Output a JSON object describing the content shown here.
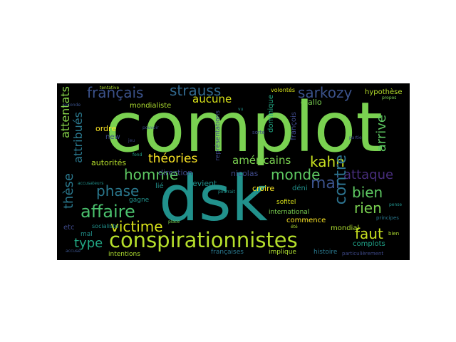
{
  "wordcloud": {
    "background": "#000000",
    "words": [
      {
        "text": "complot",
        "color": "#7ad151"
      },
      {
        "text": "dsk",
        "color": "#21918c"
      },
      {
        "text": "conspirationnistes",
        "color": "#b5de2b"
      },
      {
        "text": "théories",
        "color": "#fde725"
      },
      {
        "text": "homme",
        "color": "#5ec962"
      },
      {
        "text": "kahn",
        "color": "#c8e020"
      },
      {
        "text": "monde",
        "color": "#5ec962"
      },
      {
        "text": "affaire",
        "color": "#4ac16d"
      },
      {
        "text": "victime",
        "color": "#d8e219"
      },
      {
        "text": "phase",
        "color": "#2a788e"
      },
      {
        "text": "type",
        "color": "#22a884"
      },
      {
        "text": "français",
        "color": "#3b528b"
      },
      {
        "text": "strauss",
        "color": "#31688e"
      },
      {
        "text": "sarkozy",
        "color": "#3b528b"
      },
      {
        "text": "aucune",
        "color": "#d8e219"
      },
      {
        "text": "américains",
        "color": "#7ad151"
      },
      {
        "text": "attaque",
        "color": "#472d7b"
      },
      {
        "text": "bien",
        "color": "#5ec962"
      },
      {
        "text": "faut",
        "color": "#c8e020"
      },
      {
        "text": "rien",
        "color": "#7ad151"
      },
      {
        "text": "mai",
        "color": "#3b528b"
      },
      {
        "text": "contre",
        "color": "#2c728e"
      },
      {
        "text": "arrive",
        "color": "#5ec962"
      },
      {
        "text": "thèse",
        "color": "#2a788e"
      },
      {
        "text": "attentats",
        "color": "#86d549"
      },
      {
        "text": "attribués",
        "color": "#2a788e"
      },
      {
        "text": "autorités",
        "color": "#b5de2b"
      },
      {
        "text": "ordre",
        "color": "#fde725"
      },
      {
        "text": "direction",
        "color": "#3e4989"
      },
      {
        "text": "nicolas",
        "color": "#3e4989"
      },
      {
        "text": "devient",
        "color": "#21918c"
      },
      {
        "text": "croire",
        "color": "#fde725"
      },
      {
        "text": "déni",
        "color": "#21918c"
      },
      {
        "text": "mondial",
        "color": "#addc30"
      },
      {
        "text": "international",
        "color": "#7ad151"
      },
      {
        "text": "commence",
        "color": "#fde725"
      },
      {
        "text": "complots",
        "color": "#1fa187"
      },
      {
        "text": "histoire",
        "color": "#2a788e"
      },
      {
        "text": "implique",
        "color": "#addc30"
      },
      {
        "text": "françaises",
        "color": "#2a788e"
      },
      {
        "text": "intentions",
        "color": "#addc30"
      },
      {
        "text": "etc",
        "color": "#3e4989"
      },
      {
        "text": "mal",
        "color": "#21918c"
      },
      {
        "text": "lié",
        "color": "#21918c"
      },
      {
        "text": "gagne",
        "color": "#21918c"
      },
      {
        "text": "diallo",
        "color": "#7ad151"
      },
      {
        "text": "hypothèse",
        "color": "#b5de2b"
      },
      {
        "text": "dominique",
        "color": "#22a884"
      },
      {
        "text": "françois",
        "color": "#3e4989"
      },
      {
        "text": "mondialiste",
        "color": "#addc30"
      },
      {
        "text": "new",
        "color": "#3e4989"
      },
      {
        "text": "sofitel",
        "color": "#d8e219"
      },
      {
        "text": "représentations",
        "color": "#3e4989"
      },
      {
        "text": "volontés",
        "color": "#d8e219"
      },
      {
        "text": "socialiste",
        "color": "#21918c"
      },
      {
        "text": "principes",
        "color": "#2a788e"
      },
      {
        "text": "particulièrement",
        "color": "#3e4989"
      },
      {
        "text": "tentative",
        "color": "#addc30"
      },
      {
        "text": "propos",
        "color": "#7ad151"
      },
      {
        "text": "accusé",
        "color": "#3b528b"
      },
      {
        "text": "accusateurs",
        "color": "#21918c"
      },
      {
        "text": "seconde",
        "color": "#3b528b"
      },
      {
        "text": "place",
        "color": "#7ad151"
      },
      {
        "text": "sorte",
        "color": "#3e4989"
      },
      {
        "text": "fond",
        "color": "#1fa187"
      },
      {
        "text": "vu",
        "color": "#21918c"
      },
      {
        "text": "été",
        "color": "#addc30"
      },
      {
        "text": "pense",
        "color": "#21918c"
      },
      {
        "text": "partie",
        "color": "#3e4989"
      },
      {
        "text": "pouvoir",
        "color": "#3b528b"
      },
      {
        "text": "bien",
        "color": "#addc30"
      },
      {
        "text": "jeu",
        "color": "#3e4989"
      },
      {
        "text": "pourrait",
        "color": "#21918c"
      }
    ]
  }
}
